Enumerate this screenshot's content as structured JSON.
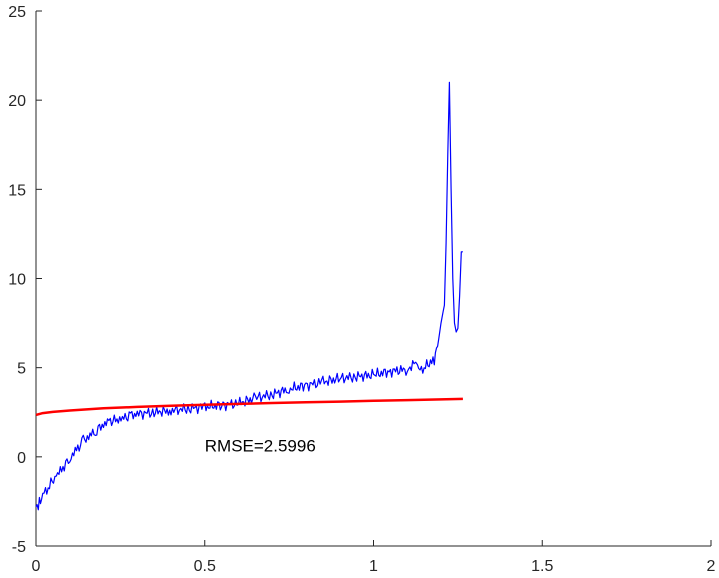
{
  "chart_data": {
    "type": "line",
    "title": "",
    "xlabel": "",
    "ylabel": "",
    "xlim": [
      0,
      2
    ],
    "ylim": [
      -5,
      25
    ],
    "grid": false,
    "legend": "none",
    "x_ticks": [
      "0",
      "0.5",
      "1",
      "1.5",
      "2"
    ],
    "y_ticks": [
      "-5",
      "0",
      "5",
      "10",
      "15",
      "20",
      "25"
    ],
    "series": [
      {
        "color": "#0000ff",
        "style": "noisy",
        "x": [
          0.0,
          0.01,
          0.02,
          0.04,
          0.06,
          0.08,
          0.1,
          0.12,
          0.14,
          0.16,
          0.18,
          0.2,
          0.22,
          0.24,
          0.26,
          0.28,
          0.3,
          0.35,
          0.4,
          0.45,
          0.5,
          0.55,
          0.6,
          0.65,
          0.7,
          0.75,
          0.8,
          0.85,
          0.9,
          0.95,
          1.0,
          1.05,
          1.1,
          1.12,
          1.13,
          1.15,
          1.18,
          1.19,
          1.2,
          1.21,
          1.215,
          1.22,
          1.225,
          1.23,
          1.235,
          1.24,
          1.245,
          1.25,
          1.255,
          1.26,
          1.265
        ],
        "y": [
          -2.8,
          -2.6,
          -2.1,
          -1.6,
          -1.1,
          -0.6,
          -0.1,
          0.4,
          0.9,
          1.2,
          1.5,
          1.8,
          2.0,
          2.1,
          2.2,
          2.3,
          2.4,
          2.5,
          2.6,
          2.7,
          2.8,
          2.9,
          3.0,
          3.3,
          3.5,
          3.8,
          4.0,
          4.2,
          4.4,
          4.5,
          4.6,
          4.8,
          4.9,
          5.2,
          4.9,
          5.0,
          5.5,
          6.2,
          7.5,
          8.5,
          12.0,
          17.0,
          21.0,
          15.0,
          10.0,
          7.5,
          7.0,
          7.2,
          9.0,
          11.5,
          11.5
        ]
      },
      {
        "color": "#ff0000",
        "style": "smooth",
        "x": [
          0.0,
          0.02,
          0.05,
          0.1,
          0.2,
          0.3,
          0.4,
          0.5,
          0.6,
          0.7,
          0.8,
          0.9,
          1.0,
          1.1,
          1.2,
          1.265
        ],
        "y": [
          2.35,
          2.45,
          2.52,
          2.6,
          2.72,
          2.8,
          2.86,
          2.92,
          2.97,
          3.02,
          3.06,
          3.1,
          3.14,
          3.18,
          3.22,
          3.25
        ]
      }
    ],
    "annotations": [
      {
        "text": "RMSE=2.5996",
        "x": 0.5,
        "y": 0.3
      }
    ]
  }
}
